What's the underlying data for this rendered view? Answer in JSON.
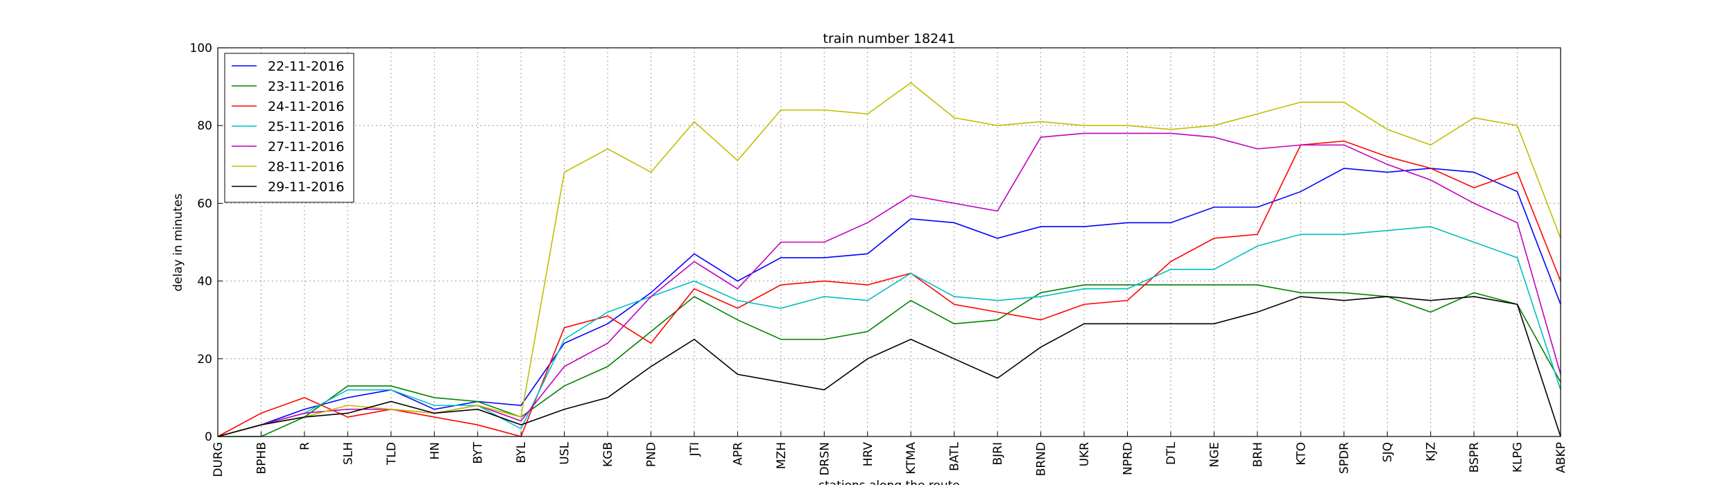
{
  "chart_data": {
    "type": "line",
    "title": "train number 18241",
    "x_label": "stations along the route",
    "y_label": "delay in minutes",
    "categories": [
      "DURG",
      "BPHB",
      "R",
      "SLH",
      "TLD",
      "HN",
      "BYT",
      "BYL",
      "USL",
      "KGB",
      "PND",
      "JTI",
      "APR",
      "MZH",
      "DRSN",
      "HRV",
      "KTMA",
      "BATL",
      "BJRI",
      "BRND",
      "UKR",
      "NPRD",
      "DTL",
      "NGE",
      "BRH",
      "KTO",
      "SPDR",
      "SJQ",
      "KJZ",
      "BSPR",
      "KLPG",
      "ABKP"
    ],
    "series": [
      {
        "name": "22-11-2016",
        "color": "#0000ff",
        "values": [
          0,
          3,
          7,
          10,
          12,
          7,
          9,
          8,
          24,
          29,
          37,
          47,
          40,
          46,
          46,
          47,
          56,
          55,
          51,
          54,
          54,
          55,
          55,
          59,
          59,
          63,
          69,
          68,
          69,
          68,
          63,
          34
        ]
      },
      {
        "name": "23-11-2016",
        "color": "#008000",
        "values": [
          0,
          0,
          5,
          13,
          13,
          10,
          9,
          5,
          13,
          18,
          27,
          36,
          30,
          25,
          25,
          27,
          35,
          29,
          30,
          37,
          39,
          39,
          39,
          39,
          39,
          37,
          37,
          36,
          32,
          37,
          34,
          14
        ]
      },
      {
        "name": "24-11-2016",
        "color": "#ff0000",
        "values": [
          0,
          6,
          10,
          5,
          7,
          5,
          3,
          0,
          28,
          31,
          24,
          38,
          33,
          39,
          40,
          39,
          42,
          34,
          32,
          30,
          34,
          35,
          45,
          51,
          52,
          75,
          76,
          72,
          69,
          64,
          68,
          40
        ]
      },
      {
        "name": "25-11-2016",
        "color": "#00bfbf",
        "values": [
          0,
          3,
          6,
          12,
          12,
          8,
          8,
          2,
          25,
          32,
          36,
          40,
          35,
          33,
          36,
          35,
          42,
          36,
          35,
          36,
          38,
          38,
          43,
          43,
          49,
          52,
          52,
          53,
          54,
          50,
          46,
          12
        ]
      },
      {
        "name": "27-11-2016",
        "color": "#bf00bf",
        "values": [
          0,
          3,
          6,
          7,
          7,
          6,
          8,
          4,
          18,
          24,
          36,
          45,
          38,
          50,
          50,
          55,
          62,
          60,
          58,
          77,
          78,
          78,
          78,
          77,
          74,
          75,
          75,
          70,
          66,
          60,
          55,
          16
        ]
      },
      {
        "name": "28-11-2016",
        "color": "#bfbf00",
        "values": [
          0,
          3,
          5,
          8,
          7,
          6,
          8,
          5,
          68,
          74,
          68,
          81,
          71,
          84,
          84,
          83,
          91,
          82,
          80,
          81,
          80,
          80,
          79,
          80,
          83,
          86,
          86,
          79,
          75,
          82,
          80,
          51
        ]
      },
      {
        "name": "29-11-2016",
        "color": "#000000",
        "values": [
          0,
          3,
          5,
          6,
          9,
          6,
          7,
          3,
          7,
          10,
          18,
          25,
          16,
          14,
          12,
          20,
          25,
          20,
          15,
          23,
          29,
          29,
          29,
          29,
          32,
          36,
          35,
          36,
          35,
          36,
          34,
          0
        ]
      }
    ],
    "ylim": [
      0,
      100
    ],
    "yticks": [
      0,
      20,
      40,
      60,
      80,
      100
    ],
    "grid": true,
    "legend": "upper left"
  }
}
